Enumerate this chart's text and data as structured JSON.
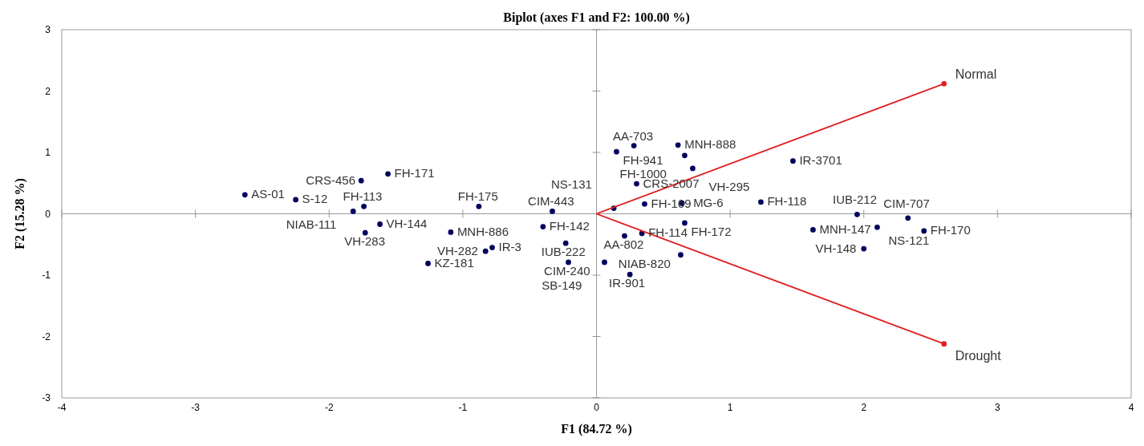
{
  "chart_data": {
    "type": "scatter",
    "title": "Biplot (axes F1 and F2: 100.00 %)",
    "xlabel": "F1 (84.72 %)",
    "ylabel": "F2 (15.28 %)",
    "xlim": [
      -4,
      4
    ],
    "xticks": [
      -4,
      -3,
      -2,
      -1,
      0,
      1,
      2,
      3,
      4
    ],
    "ylim": [
      -3,
      3
    ],
    "yticks": [
      -3,
      -2,
      -1,
      0,
      1,
      2,
      3
    ],
    "legend": false,
    "marker": "circle",
    "series": [
      {
        "color": "#00005e",
        "x": [
          -2.63,
          -2.25,
          -1.76,
          -1.56,
          -1.82,
          -1.74,
          -1.62,
          -1.73,
          -1.26,
          -1.09,
          -0.88,
          -0.83,
          -0.78,
          -0.33,
          -0.4,
          -0.23,
          -0.21,
          0.61,
          0.28,
          0.15,
          0.66,
          0.72,
          0.3,
          0.13,
          0.36,
          0.64,
          0.66,
          0.21,
          0.34,
          0.63,
          0.25,
          0.06,
          1.47,
          1.23,
          1.95,
          1.62,
          2.1,
          2.33,
          2.45,
          2.0
        ],
        "values": [
          0.31,
          0.23,
          0.54,
          0.65,
          0.04,
          0.12,
          -0.17,
          -0.31,
          -0.81,
          -0.3,
          0.12,
          -0.61,
          -0.55,
          0.04,
          -0.21,
          -0.48,
          -0.79,
          1.12,
          1.11,
          1.01,
          0.95,
          0.74,
          0.49,
          0.09,
          0.16,
          0.17,
          -0.15,
          -0.36,
          -0.32,
          -0.67,
          -0.99,
          -0.79,
          0.86,
          0.19,
          -0.01,
          -0.26,
          -0.22,
          -0.07,
          -0.28,
          -0.57
        ],
        "value_labels": [
          "AS-01",
          "S-12",
          "CRS-456",
          "FH-171",
          "NIAB-111",
          "FH-113",
          "VH-144",
          "VH-283",
          "KZ-181",
          "MNH-886",
          "FH-175",
          "VH-282",
          "IR-3",
          "CIM-443",
          "FH-142",
          "IUB-222",
          "CIM-240",
          "MNH-888",
          "AA-703",
          "FH-941",
          "FH-1000",
          "VH-295",
          "CRS-2007",
          "NS-131",
          "FH-169",
          "MG-6",
          "FH-172",
          "AA-802",
          "FH-114",
          "NIAB-820",
          "IR-901",
          "SB-149",
          "IR-3701",
          "FH-118",
          "IUB-212",
          "MNH-147",
          "NS-121",
          "CIM-707",
          "FH-170",
          "VH-148"
        ]
      },
      {
        "type": "line",
        "name": "Normal",
        "color": "#e02020",
        "marker": "none",
        "x": [
          0,
          2.6
        ],
        "values": [
          0,
          2.12
        ]
      },
      {
        "type": "line",
        "name": "Drought",
        "color": "#e02020",
        "marker": "none",
        "x": [
          0,
          2.6
        ],
        "values": [
          0,
          -2.12
        ]
      },
      {
        "color": "#e02020",
        "x": [
          2.6,
          2.6
        ],
        "values": [
          2.12,
          -2.12
        ]
      }
    ]
  }
}
